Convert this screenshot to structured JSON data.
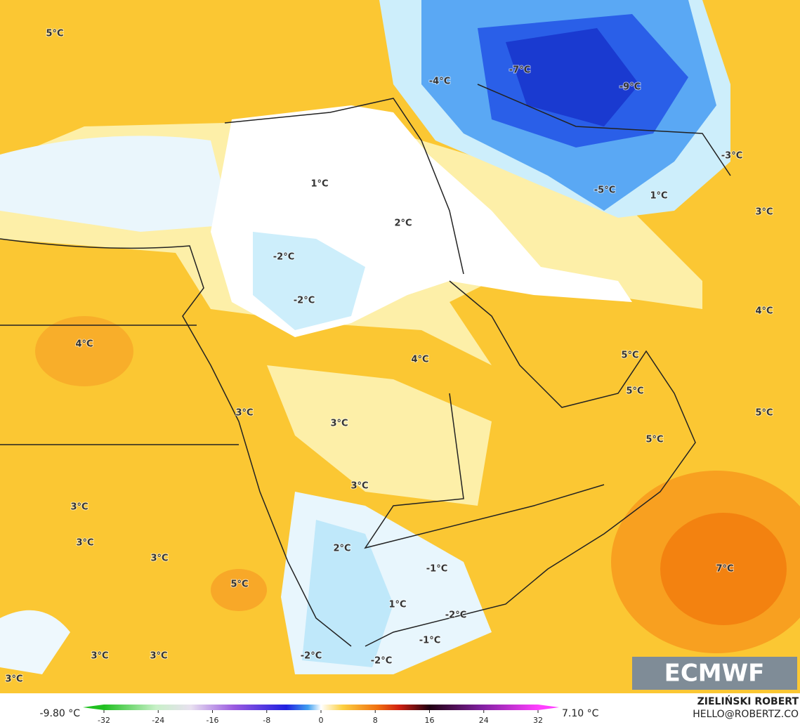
{
  "map": {
    "labels": [
      "5°C",
      "-4°C",
      "-7°C",
      "-9°C",
      "-3°C",
      "1°C",
      "-5°C",
      "1°C",
      "3°C",
      "2°C",
      "-2°C",
      "-2°C",
      "4°C",
      "4°C",
      "4°C",
      "5°C",
      "5°C",
      "5°C",
      "3°C",
      "3°C",
      "5°C",
      "3°C",
      "3°C",
      "3°C",
      "3°C",
      "2°C",
      "-1°C",
      "7°C",
      "5°C",
      "1°C",
      "-2°C",
      "-1°C",
      "3°C",
      "3°C",
      "-2°C",
      "-2°C",
      "3°C"
    ],
    "logo": "ECMWF"
  },
  "colorbar": {
    "min_label": "-9.80 °C",
    "max_label": "7.10 °C",
    "lim": [
      -32,
      32
    ],
    "ticks": [
      -32,
      -24,
      -16,
      -8,
      0,
      8,
      16,
      24,
      32
    ]
  },
  "credits": [
    "ZIELIŃSKI ROBERT",
    "HELLO@ROBERTZ.CO"
  ]
}
